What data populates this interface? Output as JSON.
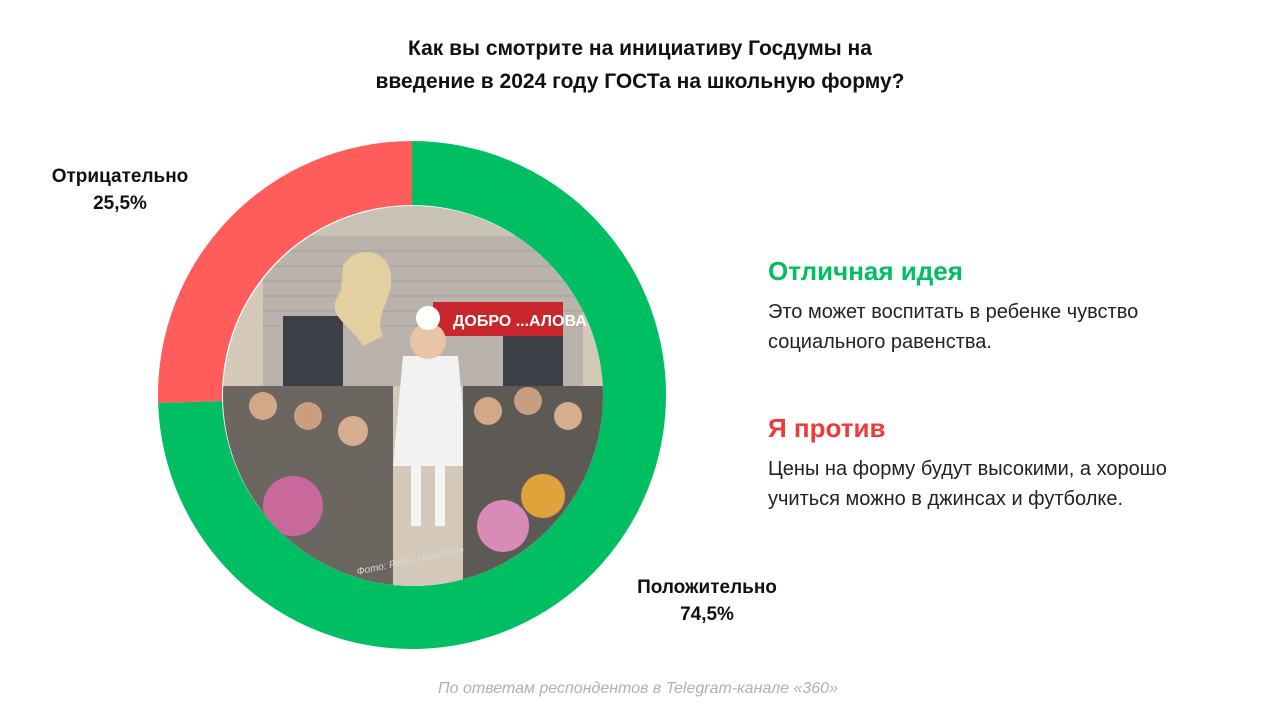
{
  "title": {
    "line1": "Как вы смотрите на инициативу Госдумы на",
    "line2": "введение в 2024 году ГОСТа на школьную форму?"
  },
  "chart_data": {
    "type": "pie",
    "donut": true,
    "title": "Как вы смотрите на инициативу Госдумы на введение в 2024 году ГОСТа на школьную форму?",
    "series": [
      {
        "name": "Положительно",
        "value": 74.5,
        "label": "74,5%",
        "color": "#00bf63"
      },
      {
        "name": "Отрицательно",
        "value": 25.5,
        "label": "25,5%",
        "color": "#ff5c5c"
      }
    ]
  },
  "photo": {
    "sign_text": "ДОБРО ...АЛОВАТЬ!",
    "credit": "Фото: РИА «Новости»"
  },
  "opinions": {
    "positive": {
      "heading": "Отличная идея",
      "text": "Это может воспитать в ребенке чувство социального равенства."
    },
    "negative": {
      "heading": "Я против",
      "text": "Цены на форму будут высокими, а хорошо учиться можно в джинсах и футболке."
    }
  },
  "footer": "По ответам респондентов в Telegram-канале «360»",
  "colors": {
    "positive": "#00bf63",
    "negative": "#ff5c5c",
    "negative_heading": "#ec3b3b",
    "footer": "#b0b0b0"
  }
}
